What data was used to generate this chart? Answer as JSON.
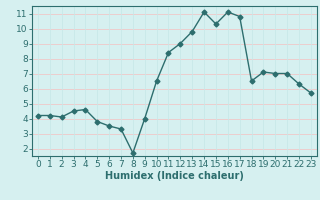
{
  "x": [
    0,
    1,
    2,
    3,
    4,
    5,
    6,
    7,
    8,
    9,
    10,
    11,
    12,
    13,
    14,
    15,
    16,
    17,
    18,
    19,
    20,
    21,
    22,
    23
  ],
  "y": [
    4.2,
    4.2,
    4.1,
    4.5,
    4.6,
    3.8,
    3.5,
    3.3,
    1.7,
    4.0,
    6.5,
    8.4,
    9.0,
    9.8,
    11.1,
    10.3,
    11.1,
    10.8,
    6.5,
    7.1,
    7.0,
    7.0,
    6.3,
    5.7
  ],
  "line_color": "#2d6e6e",
  "marker": "D",
  "markersize": 2.5,
  "linewidth": 1.0,
  "xlabel": "Humidex (Indice chaleur)",
  "xlim": [
    -0.5,
    23.5
  ],
  "ylim": [
    1.5,
    11.5
  ],
  "yticks": [
    2,
    3,
    4,
    5,
    6,
    7,
    8,
    9,
    10,
    11
  ],
  "xticks": [
    0,
    1,
    2,
    3,
    4,
    5,
    6,
    7,
    8,
    9,
    10,
    11,
    12,
    13,
    14,
    15,
    16,
    17,
    18,
    19,
    20,
    21,
    22,
    23
  ],
  "bg_color": "#d6f0f0",
  "grid_color_v": "#c8e8e8",
  "grid_color_h": "#f0c8c8",
  "spine_color": "#2d6e6e",
  "tick_color": "#2d6e6e",
  "label_color": "#2d6e6e",
  "xlabel_fontsize": 7,
  "tick_fontsize": 6.5
}
